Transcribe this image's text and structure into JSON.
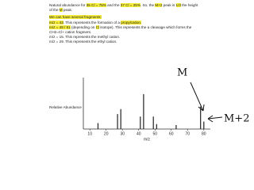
{
  "document": {
    "lines": [
      [
        {
          "text": "Natural abundance for ",
          "hl": false
        },
        {
          "text": "35 Cl = 75%",
          "hl": true
        },
        {
          "text": " and the ",
          "hl": false
        },
        {
          "text": "37 Cl = 25%",
          "hl": true
        },
        {
          "text": ". So, the ",
          "hl": false
        },
        {
          "text": "M+2",
          "hl": true
        },
        {
          "text": " peak is ",
          "hl": false
        },
        {
          "text": "1/3",
          "hl": true
        },
        {
          "text": " the height",
          "hl": false
        }
      ],
      [
        {
          "text": "of the ",
          "hl": false
        },
        {
          "text": "M",
          "hl": true
        },
        {
          "text": " peak.",
          "hl": false
        }
      ],
      [
        {
          "text": "We can have several fragments:",
          "hl": true
        }
      ],
      [
        {
          "text": "m/z = 43",
          "hl": true
        },
        {
          "text": ". This represents the formation of a ",
          "hl": false
        },
        {
          "text": "propylcation.",
          "hl": true
        }
      ],
      [
        {
          "text": "m/z = 49 / 51",
          "hl": true
        },
        {
          "text": " (depending on ",
          "hl": false
        },
        {
          "text": "Cl",
          "hl": true
        },
        {
          "text": " isotope). This represents the a cleavage which forms the",
          "hl": false
        }
      ],
      [
        {
          "text": "CH2=Cl+ cation fragment.",
          "hl": false
        }
      ],
      [
        {
          "text": "m/z = 15. This represents the methyl cation.",
          "hl": false
        }
      ],
      [
        {
          "text": "m/z = 29. This represents the ethyl cation.",
          "hl": false
        }
      ]
    ]
  },
  "chart_data": {
    "type": "bar",
    "y_label": "Relative Abundance",
    "x_label": "m/z",
    "x": [
      15,
      27,
      29,
      41,
      43,
      49,
      51,
      63,
      78,
      80
    ],
    "values": [
      12,
      30,
      40,
      25,
      70,
      25,
      10,
      8,
      45,
      15
    ],
    "color": "#222222",
    "xlim": [
      6,
      84
    ],
    "xticks": [
      10,
      20,
      30,
      40,
      50,
      60,
      70,
      80
    ],
    "ylim": [
      0,
      100
    ],
    "annotations": [
      "M",
      "M+2"
    ]
  }
}
